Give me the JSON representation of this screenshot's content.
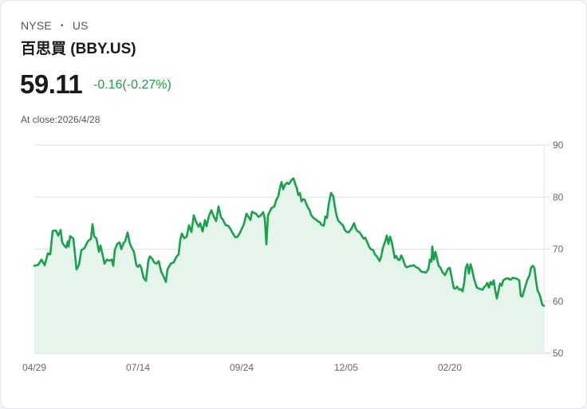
{
  "header": {
    "exchange": "NYSE",
    "separator": "•",
    "region": "US",
    "title": "百思買 (BBY.US)",
    "price": "59.11",
    "change": "-0.16(-0.27%)",
    "close_label": "At close:2026/4/28"
  },
  "colors": {
    "line": "#16a34a",
    "fill": "#e6f5ec",
    "change_text": "#1f9d48",
    "grid": "#e2e2e2"
  },
  "chart_data": {
    "type": "area",
    "title": "百思買 (BBY.US)",
    "xlabel": "",
    "ylabel": "",
    "ylim": [
      50,
      90
    ],
    "yticks": [
      50,
      60,
      70,
      80,
      90
    ],
    "xticks": [
      "04/29",
      "07/14",
      "09/24",
      "12/05",
      "02/20"
    ],
    "grid": true,
    "legend": "none",
    "x": [
      "04/29",
      "05/05",
      "05/12",
      "05/19",
      "05/27",
      "06/02",
      "06/09",
      "06/16",
      "06/23",
      "06/30",
      "07/07",
      "07/14",
      "07/21",
      "07/28",
      "08/04",
      "08/11",
      "08/18",
      "08/25",
      "09/02",
      "09/08",
      "09/15",
      "09/22",
      "09/29",
      "10/06",
      "10/13",
      "10/20",
      "10/27",
      "11/03",
      "11/10",
      "11/17",
      "11/24",
      "12/01",
      "12/08",
      "12/15",
      "12/22",
      "12/29",
      "01/05",
      "01/12",
      "01/20",
      "01/27",
      "02/03",
      "02/10",
      "02/17",
      "02/24",
      "03/03",
      "03/10",
      "03/17",
      "03/24",
      "03/31",
      "04/07",
      "04/14",
      "04/21",
      "04/28"
    ],
    "values": [
      66.8,
      68.0,
      73.5,
      70.0,
      72.5,
      67.5,
      71.0,
      74.5,
      68.0,
      67.5,
      73.0,
      66.5,
      67.5,
      64.5,
      69.0,
      74.0,
      75.5,
      74.5,
      77.5,
      73.0,
      76.0,
      77.0,
      70.5,
      79.0,
      83.0,
      83.5,
      80.0,
      78.0,
      74.5,
      80.5,
      76.0,
      73.5,
      70.0,
      68.5,
      71.5,
      67.5,
      67.0,
      65.5,
      66.5,
      67.5,
      65.5,
      69.5,
      66.5,
      62.5,
      66.5,
      63.5,
      62.5,
      64.0,
      63.5,
      64.5,
      61.0,
      66.5,
      59.11
    ]
  },
  "chart_render": {
    "points": [
      [
        43,
        66.8
      ],
      [
        48,
        67.0
      ],
      [
        52,
        68.0
      ],
      [
        56,
        66.9
      ],
      [
        60,
        69.2
      ],
      [
        63,
        69.0
      ],
      [
        66,
        73.5
      ],
      [
        70,
        73.6
      ],
      [
        73,
        72.6
      ],
      [
        76,
        73.7
      ],
      [
        78,
        71.3
      ],
      [
        80,
        70.8
      ],
      [
        83,
        70.3
      ],
      [
        85,
        71.5
      ],
      [
        86,
        70.5
      ],
      [
        88,
        72.5
      ],
      [
        92,
        72.0
      ],
      [
        96,
        66.1
      ],
      [
        99,
        67.0
      ],
      [
        102,
        69.8
      ],
      [
        106,
        70.2
      ],
      [
        110,
        71.5
      ],
      [
        114,
        72.0
      ],
      [
        116,
        74.8
      ],
      [
        118,
        72.5
      ],
      [
        121,
        72.0
      ],
      [
        124,
        69.5
      ],
      [
        126,
        70.7
      ],
      [
        129,
        68.7
      ],
      [
        131,
        67.2
      ],
      [
        134,
        68.0
      ],
      [
        137,
        67.8
      ],
      [
        140,
        68.0
      ],
      [
        142,
        66.8
      ],
      [
        144,
        69.9
      ],
      [
        147,
        71.0
      ],
      [
        150,
        71.3
      ],
      [
        152,
        70.0
      ],
      [
        155,
        71.2
      ],
      [
        157,
        71.5
      ],
      [
        160,
        73.2
      ],
      [
        163,
        71.0
      ],
      [
        166,
        70.0
      ],
      [
        168,
        69.5
      ],
      [
        171,
        66.9
      ],
      [
        173,
        66.6
      ],
      [
        175,
        67.0
      ],
      [
        177,
        66.5
      ],
      [
        180,
        64.5
      ],
      [
        183,
        63.9
      ],
      [
        186,
        67.8
      ],
      [
        188,
        68.6
      ],
      [
        191,
        68.1
      ],
      [
        193,
        67.5
      ],
      [
        196,
        67.2
      ],
      [
        199,
        67.7
      ],
      [
        202,
        65.7
      ],
      [
        205,
        64.8
      ],
      [
        208,
        63.7
      ],
      [
        210,
        66.1
      ],
      [
        214,
        67.2
      ],
      [
        218,
        67.5
      ],
      [
        221,
        68.5
      ],
      [
        224,
        69.0
      ],
      [
        226,
        71.8
      ],
      [
        228,
        73.0
      ],
      [
        231,
        72.1
      ],
      [
        234,
        72.4
      ],
      [
        237,
        74.6
      ],
      [
        240,
        73.3
      ],
      [
        243,
        76.5
      ],
      [
        246,
        75.2
      ],
      [
        249,
        74.3
      ],
      [
        251,
        75.0
      ],
      [
        254,
        73.4
      ],
      [
        257,
        75.6
      ],
      [
        259,
        74.4
      ],
      [
        262,
        76.4
      ],
      [
        265,
        77.5
      ],
      [
        268,
        76.3
      ],
      [
        271,
        75.4
      ],
      [
        274,
        78.2
      ],
      [
        277,
        76.2
      ],
      [
        280,
        75.5
      ],
      [
        283,
        74.6
      ],
      [
        286,
        74.5
      ],
      [
        289,
        73.9
      ],
      [
        292,
        73.0
      ],
      [
        295,
        72.3
      ],
      [
        298,
        72.4
      ],
      [
        301,
        73.2
      ],
      [
        304,
        74.2
      ],
      [
        306,
        74.9
      ],
      [
        309,
        76.8
      ],
      [
        312,
        76.1
      ],
      [
        314,
        75.6
      ],
      [
        316,
        77.2
      ],
      [
        318,
        77.0
      ],
      [
        321,
        76.8
      ],
      [
        324,
        76.2
      ],
      [
        327,
        76.5
      ],
      [
        330,
        77.1
      ],
      [
        332,
        75.9
      ],
      [
        334,
        70.9
      ],
      [
        336,
        76.5
      ],
      [
        339,
        77.5
      ],
      [
        341,
        78.0
      ],
      [
        344,
        78.2
      ],
      [
        346,
        79.3
      ],
      [
        349,
        80.2
      ],
      [
        351,
        81.8
      ],
      [
        353,
        82.9
      ],
      [
        355,
        81.5
      ],
      [
        357,
        82.3
      ],
      [
        360,
        82.8
      ],
      [
        362,
        82.5
      ],
      [
        364,
        82.9
      ],
      [
        366,
        83.4
      ],
      [
        368,
        83.6
      ],
      [
        370,
        82.6
      ],
      [
        372,
        81.8
      ],
      [
        374,
        80.4
      ],
      [
        376,
        80.8
      ],
      [
        378,
        79.2
      ],
      [
        380,
        79.6
      ],
      [
        382,
        79.5
      ],
      [
        384,
        78.7
      ],
      [
        386,
        78.0
      ],
      [
        388,
        77.6
      ],
      [
        390,
        76.6
      ],
      [
        393,
        76.0
      ],
      [
        396,
        75.7
      ],
      [
        399,
        75.3
      ],
      [
        401,
        75.2
      ],
      [
        403,
        74.7
      ],
      [
        406,
        74.5
      ],
      [
        408,
        76.3
      ],
      [
        410,
        76.0
      ],
      [
        412,
        78.5
      ],
      [
        415,
        80.8
      ],
      [
        418,
        80.1
      ],
      [
        420,
        78.0
      ],
      [
        422,
        76.5
      ],
      [
        424,
        75.5
      ],
      [
        427,
        75.0
      ],
      [
        430,
        74.6
      ],
      [
        432,
        73.8
      ],
      [
        434,
        73.4
      ],
      [
        437,
        73.2
      ],
      [
        440,
        73.8
      ],
      [
        442,
        74.4
      ],
      [
        444,
        75.0
      ],
      [
        446,
        74.0
      ],
      [
        448,
        73.5
      ],
      [
        451,
        73.2
      ],
      [
        454,
        72.5
      ],
      [
        456,
        72.0
      ],
      [
        458,
        72.2
      ],
      [
        460,
        71.5
      ],
      [
        463,
        70.4
      ],
      [
        465,
        70.0
      ],
      [
        468,
        69.8
      ],
      [
        470,
        69.0
      ],
      [
        472,
        68.7
      ],
      [
        474,
        68.2
      ],
      [
        476,
        67.7
      ],
      [
        478,
        68.6
      ],
      [
        480,
        70.2
      ],
      [
        483,
        71.5
      ],
      [
        485,
        72.6
      ],
      [
        487,
        71.0
      ],
      [
        489,
        72.4
      ],
      [
        491,
        71.5
      ],
      [
        493,
        69.9
      ],
      [
        495,
        68.3
      ],
      [
        497,
        68.7
      ],
      [
        499,
        68.0
      ],
      [
        501,
        67.9
      ],
      [
        503,
        68.8
      ],
      [
        505,
        68.2
      ],
      [
        508,
        66.8
      ],
      [
        510,
        66.5
      ],
      [
        513,
        66.7
      ],
      [
        516,
        66.8
      ],
      [
        519,
        66.9
      ],
      [
        522,
        66.5
      ],
      [
        525,
        66.3
      ],
      [
        528,
        65.7
      ],
      [
        531,
        65.6
      ],
      [
        534,
        65.5
      ],
      [
        537,
        66.1
      ],
      [
        539,
        68.0
      ],
      [
        541,
        67.6
      ],
      [
        542,
        70.5
      ],
      [
        544,
        68.0
      ],
      [
        546,
        69.5
      ],
      [
        548,
        68.1
      ],
      [
        550,
        66.8
      ],
      [
        552,
        66.5
      ],
      [
        555,
        65.5
      ],
      [
        558,
        65.0
      ],
      [
        560,
        65.7
      ],
      [
        562,
        66.3
      ],
      [
        564,
        66.4
      ],
      [
        566,
        64.8
      ],
      [
        569,
        62.5
      ],
      [
        571,
        62.4
      ],
      [
        573,
        62.8
      ],
      [
        576,
        62.2
      ],
      [
        578,
        62.3
      ],
      [
        580,
        61.9
      ],
      [
        582,
        63.5
      ],
      [
        584,
        66.4
      ],
      [
        586,
        67.1
      ],
      [
        588,
        65.3
      ],
      [
        590,
        67.1
      ],
      [
        592,
        66.0
      ],
      [
        594,
        64.5
      ],
      [
        596,
        63.5
      ],
      [
        598,
        62.6
      ],
      [
        601,
        62.4
      ],
      [
        603,
        62.3
      ],
      [
        605,
        62.2
      ],
      [
        607,
        62.7
      ],
      [
        609,
        63.0
      ],
      [
        611,
        63.5
      ],
      [
        613,
        62.6
      ],
      [
        615,
        63.7
      ],
      [
        617,
        63.2
      ],
      [
        619,
        64.0
      ],
      [
        621,
        62.0
      ],
      [
        623,
        60.5
      ],
      [
        625,
        62.0
      ],
      [
        627,
        63.4
      ],
      [
        629,
        63.0
      ],
      [
        631,
        64.0
      ],
      [
        634,
        64.3
      ],
      [
        637,
        64.4
      ],
      [
        640,
        64.1
      ],
      [
        643,
        64.5
      ],
      [
        646,
        64.4
      ],
      [
        648,
        64.3
      ],
      [
        651,
        64.0
      ],
      [
        653,
        61.0
      ],
      [
        655,
        60.9
      ],
      [
        658,
        62.5
      ],
      [
        661,
        64.0
      ],
      [
        664,
        65.0
      ],
      [
        666,
        66.5
      ],
      [
        668,
        66.8
      ],
      [
        670,
        66.4
      ],
      [
        672,
        64.0
      ],
      [
        674,
        62.0
      ],
      [
        676,
        61.5
      ],
      [
        678,
        60.5
      ],
      [
        680,
        59.3
      ],
      [
        682,
        59.11
      ]
    ]
  }
}
